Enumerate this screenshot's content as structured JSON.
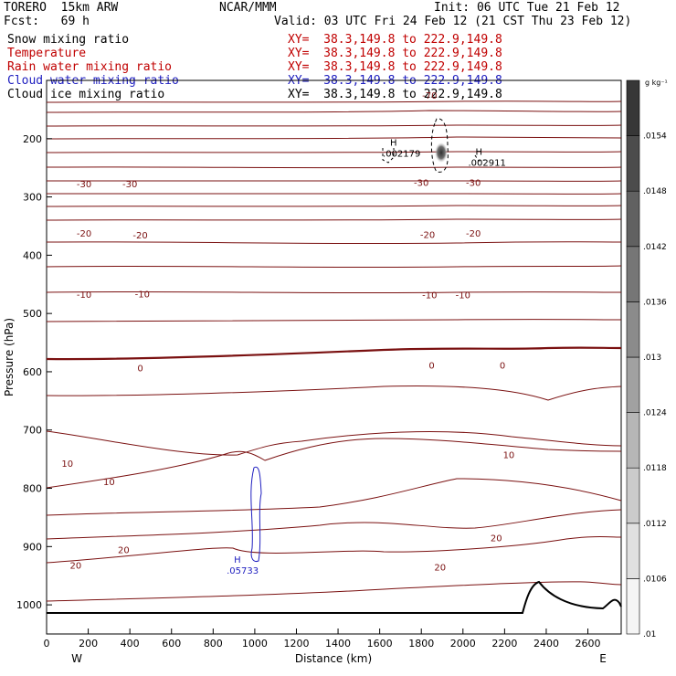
{
  "header": {
    "model": "TORERO  15km ARW",
    "forecast": "Fcst:   69 h",
    "center": "NCAR/MMM",
    "init": "Init: 06 UTC Tue 21 Feb 12",
    "valid": "Valid: 03 UTC Fri 24 Feb 12 (21 CST Thu 23 Feb 12)"
  },
  "fields": [
    {
      "label": "Snow mixing ratio",
      "xy": "XY=  38.3,149.8 to 222.9,149.8",
      "color": "#000000"
    },
    {
      "label": "Temperature",
      "xy": "XY=  38.3,149.8 to 222.9,149.8",
      "color": "#c00000"
    },
    {
      "label": "Rain water mixing ratio",
      "xy": "XY=  38.3,149.8 to 222.9,149.8",
      "color": "#c00000"
    },
    {
      "label": "Cloud water mixing ratio",
      "xy": "XY=  38.3,149.8 to 222.9,149.8",
      "color": "#2020c0"
    },
    {
      "label": "Cloud ice mixing ratio",
      "xy": "XY=  38.3,149.8 to 222.9,149.8",
      "color": "#000000"
    }
  ],
  "chart_data": {
    "type": "cross-section",
    "xlabel": "Distance (km)",
    "ylabel": "Pressure (hPa)",
    "xlim": [
      0,
      2760
    ],
    "ylim": [
      1050,
      100
    ],
    "x_ticks": [
      0,
      200,
      400,
      600,
      800,
      1000,
      1200,
      1400,
      1600,
      1800,
      2000,
      2200,
      2400,
      2600
    ],
    "y_ticks": [
      200,
      300,
      400,
      500,
      600,
      700,
      800,
      900,
      1000
    ],
    "x_end_labels": {
      "left": "W",
      "right": "E"
    },
    "colorbar": {
      "unit": "g kg⁻¹",
      "labels": [
        ".01",
        ".0106",
        ".0112",
        ".0118",
        ".0124",
        ".013",
        ".0136",
        ".0142",
        ".0148",
        ".0154"
      ]
    },
    "temperature_label_color": "#7a1010",
    "contour_labels": [
      {
        "text": "-70",
        "x": 1840,
        "p": 125
      },
      {
        "text": "-30",
        "x": 180,
        "p": 277
      },
      {
        "text": "-30",
        "x": 400,
        "p": 277
      },
      {
        "text": "-30",
        "x": 1800,
        "p": 275
      },
      {
        "text": "-30",
        "x": 2050,
        "p": 275
      },
      {
        "text": "-20",
        "x": 180,
        "p": 362
      },
      {
        "text": "-20",
        "x": 450,
        "p": 365
      },
      {
        "text": "-20",
        "x": 1830,
        "p": 364
      },
      {
        "text": "-20",
        "x": 2050,
        "p": 362
      },
      {
        "text": "-10",
        "x": 180,
        "p": 467
      },
      {
        "text": "-10",
        "x": 460,
        "p": 466
      },
      {
        "text": "-10",
        "x": 1840,
        "p": 468
      },
      {
        "text": "-10",
        "x": 2000,
        "p": 468
      },
      {
        "text": "0",
        "x": 450,
        "p": 593
      },
      {
        "text": "0",
        "x": 1850,
        "p": 588
      },
      {
        "text": "0",
        "x": 2190,
        "p": 588
      },
      {
        "text": "10",
        "x": 100,
        "p": 757
      },
      {
        "text": "10",
        "x": 300,
        "p": 788
      },
      {
        "text": "10",
        "x": 2220,
        "p": 742
      },
      {
        "text": "20",
        "x": 140,
        "p": 932
      },
      {
        "text": "20",
        "x": 370,
        "p": 905
      },
      {
        "text": "20",
        "x": 1890,
        "p": 935
      },
      {
        "text": "20",
        "x": 2160,
        "p": 885
      }
    ],
    "extrema": [
      {
        "mark": "H",
        "value": ".002179",
        "x": 1650,
        "p": 225,
        "color": "#000000"
      },
      {
        "mark": "H",
        "value": ".002911",
        "x": 2060,
        "p": 240,
        "color": "#000000"
      },
      {
        "mark": "H",
        "value": ".05733",
        "x": 900,
        "p": 940,
        "color": "#2020c0"
      }
    ]
  }
}
